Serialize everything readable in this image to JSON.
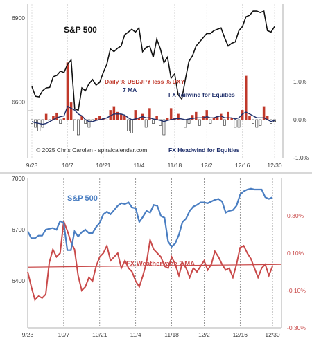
{
  "colors": {
    "spx_black": "#111111",
    "bar_red": "#c0392b",
    "ma_navy": "#1f2f6b",
    "spx_blue": "#4a7ec2",
    "wv_red": "#c94a4a",
    "grid": "#c8c8c8",
    "divider": "#b0b0b0"
  },
  "chart_data": [
    {
      "type": "line",
      "title": "S&P 500",
      "subtitle": "Daily % USDJPY less % DXY",
      "ma_label": "7 MA",
      "annotations": {
        "tailwind": "FX Tailwind for Equities",
        "headwind": "FX Headwind for Equities",
        "credit": "© 2025 Chris Carolan - spiralcalendar.com"
      },
      "x_ticks": [
        {
          "label": "9/23",
          "i": 0
        },
        {
          "label": "10/7",
          "i": 10
        },
        {
          "label": "10/21",
          "i": 20
        },
        {
          "label": "11/4",
          "i": 30
        },
        {
          "label": "11/18",
          "i": 40
        },
        {
          "label": "12/2",
          "i": 49
        },
        {
          "label": "12/16",
          "i": 59
        },
        {
          "label": "12/30",
          "i": 68
        }
      ],
      "left_axis": {
        "ticks": [
          "6900",
          "6600"
        ],
        "range": [
          6400,
          6950
        ]
      },
      "right_axis": {
        "ticks": [
          "1.0%",
          "0.0%",
          "-1.0%"
        ],
        "range": [
          -1.0,
          1.0
        ]
      },
      "series": [
        {
          "name": "S&P 500",
          "values": [
            6655,
            6620,
            6618,
            6640,
            6650,
            6652,
            6690,
            6695,
            6710,
            6705,
            6735,
            6750,
            6575,
            6570,
            6650,
            6640,
            6665,
            6680,
            6660,
            6670,
            6705,
            6735,
            6790,
            6780,
            6792,
            6800,
            6840,
            6850,
            6860,
            6850,
            6865,
            6780,
            6795,
            6800,
            6760,
            6825,
            6790,
            6740,
            6760,
            6685,
            6700,
            6625,
            6610,
            6680,
            6745,
            6765,
            6800,
            6815,
            6830,
            6845,
            6845,
            6855,
            6860,
            6865,
            6830,
            6800,
            6810,
            6815,
            6855,
            6870,
            6905,
            6910,
            6925,
            6925,
            6920,
            6925,
            6855,
            6850,
            6870
          ]
        },
        {
          "name": "Daily % USDJPY less % DXY",
          "values": [
            -0.1,
            -0.2,
            -0.3,
            -0.2,
            0.15,
            -0.05,
            0.1,
            0.18,
            -0.1,
            0.05,
            1.5,
            0.45,
            -0.3,
            -0.4,
            0.1,
            -0.1,
            -0.2,
            -0.05,
            0.05,
            0.1,
            0.05,
            0.0,
            0.25,
            0.35,
            0.2,
            0.15,
            0.1,
            -0.3,
            -0.35,
            0.25,
            0.05,
            0.15,
            -0.2,
            0.3,
            -0.1,
            0.1,
            -0.15,
            -0.4,
            0.05,
            0.3,
            0.05,
            0.15,
            0.0,
            -0.2,
            -0.1,
            0.12,
            0.2,
            -0.15,
            0.1,
            0.25,
            -0.1,
            0.05,
            0.1,
            0.15,
            -0.15,
            0.2,
            0.05,
            -0.2,
            -0.2,
            0.25,
            1.15,
            0.1,
            -0.1,
            -0.2,
            -0.15,
            0.35,
            0.1,
            -0.1,
            -0.05
          ]
        },
        {
          "name": "7 MA",
          "values": [
            -0.05,
            -0.08,
            -0.1,
            -0.12,
            -0.1,
            -0.05,
            0.0,
            0.05,
            0.08,
            0.1,
            0.35,
            0.3,
            0.25,
            0.15,
            0.1,
            0.0,
            -0.05,
            -0.05,
            -0.02,
            0.0,
            0.02,
            0.05,
            0.1,
            0.15,
            0.15,
            0.15,
            0.12,
            0.05,
            0.0,
            0.02,
            0.05,
            0.08,
            0.05,
            0.05,
            0.02,
            0.0,
            -0.02,
            -0.05,
            -0.02,
            0.0,
            0.02,
            0.03,
            0.02,
            0.0,
            0.02,
            0.03,
            0.05,
            0.05,
            0.05,
            0.08,
            0.05,
            0.05,
            0.08,
            0.1,
            0.05,
            0.05,
            0.05,
            0.02,
            0.05,
            0.15,
            0.2,
            0.15,
            0.1,
            0.05,
            0.05,
            0.05,
            0.0,
            -0.05,
            -0.02
          ]
        }
      ]
    },
    {
      "type": "line",
      "title": "S&P 500",
      "subtitle": "FX Weathervane 7 MA",
      "x_ticks": [
        {
          "label": "9/23",
          "i": 0
        },
        {
          "label": "10/7",
          "i": 10
        },
        {
          "label": "10/21",
          "i": 20
        },
        {
          "label": "11/4",
          "i": 30
        },
        {
          "label": "11/18",
          "i": 40
        },
        {
          "label": "12/2",
          "i": 49
        },
        {
          "label": "12/16",
          "i": 59
        },
        {
          "label": "12/30",
          "i": 68
        }
      ],
      "left_axis": {
        "ticks": [
          "7000",
          "6700",
          "6400"
        ],
        "range": [
          6125,
          7000
        ]
      },
      "right_axis": {
        "ticks": [
          "0.30%",
          "0.10%",
          "-0.10%",
          "-0.30%"
        ],
        "range": [
          -0.3,
          0.5
        ]
      },
      "series": [
        {
          "name": "S&P 500",
          "values": [
            6690,
            6650,
            6650,
            6665,
            6665,
            6700,
            6705,
            6710,
            6700,
            6750,
            6740,
            6580,
            6580,
            6690,
            6660,
            6685,
            6700,
            6680,
            6680,
            6715,
            6740,
            6790,
            6805,
            6790,
            6815,
            6840,
            6855,
            6850,
            6860,
            6830,
            6825,
            6745,
            6775,
            6810,
            6800,
            6845,
            6840,
            6780,
            6770,
            6630,
            6600,
            6620,
            6670,
            6745,
            6765,
            6810,
            6835,
            6845,
            6860,
            6860,
            6855,
            6865,
            6875,
            6880,
            6865,
            6800,
            6810,
            6815,
            6840,
            6905,
            6925,
            6935,
            6940,
            6935,
            6935,
            6935,
            6890,
            6880,
            6890
          ]
        },
        {
          "name": "FX Weathervane 7 MA",
          "values": [
            0.0,
            -0.08,
            -0.15,
            -0.13,
            -0.14,
            -0.12,
            0.05,
            0.12,
            0.08,
            0.1,
            0.27,
            0.22,
            0.16,
            0.12,
            -0.02,
            -0.1,
            -0.08,
            -0.03,
            -0.05,
            0.03,
            0.08,
            0.1,
            0.14,
            0.06,
            0.08,
            0.1,
            0.02,
            0.06,
            0.02,
            0.0,
            -0.05,
            -0.08,
            -0.02,
            0.05,
            0.17,
            0.12,
            0.1,
            0.08,
            0.03,
            0.02,
            0.08,
            0.04,
            -0.02,
            0.05,
            0.02,
            -0.03,
            0.02,
            0.0,
            0.03,
            0.06,
            0.01,
            0.04,
            0.11,
            0.08,
            0.04,
            0.01,
            0.02,
            -0.03,
            0.04,
            0.13,
            0.14,
            0.1,
            0.07,
            0.02,
            -0.03,
            0.02,
            0.04,
            -0.02,
            0.03
          ]
        },
        {
          "name": "zero line",
          "values": [
            0.0
          ]
        }
      ]
    }
  ]
}
